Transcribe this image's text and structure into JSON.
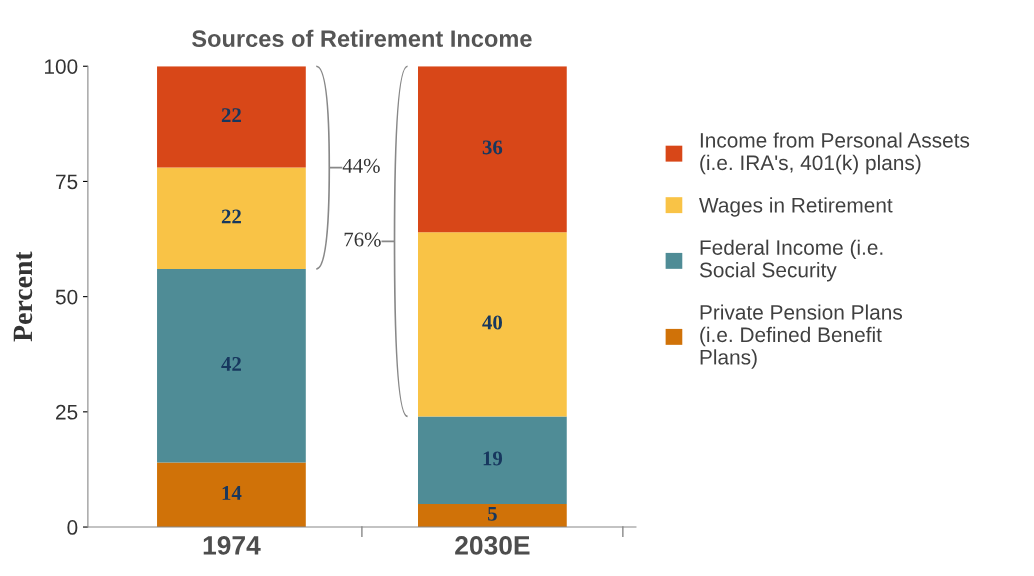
{
  "chart_data": {
    "type": "bar",
    "title": "Sources of Retirement Income",
    "ylabel": "Percent",
    "categories": [
      "1974",
      "2030E"
    ],
    "stacked": true,
    "data_labels": true,
    "series": [
      {
        "name": "Private Pension Plans\n(i.e. Defined Benefit\nPlans)",
        "color": "#d07208",
        "values": [
          14,
          5
        ]
      },
      {
        "name": "Federal Income (i.e.\nSocial Security",
        "color": "#4f8c96",
        "values": [
          42,
          19
        ]
      },
      {
        "name": "Wages in Retirement",
        "color": "#f9c346",
        "values": [
          22,
          40
        ]
      },
      {
        "name": "Income from Personal Assets\n(i.e. IRA's, 401(k) plans)",
        "color": "#d84718",
        "values": [
          22,
          36
        ]
      }
    ],
    "ylim": [
      0,
      100
    ],
    "yticks": [
      0,
      25,
      50,
      75,
      100
    ],
    "grid": false,
    "legend": "right",
    "annotations": [
      "44%",
      "76%"
    ]
  }
}
